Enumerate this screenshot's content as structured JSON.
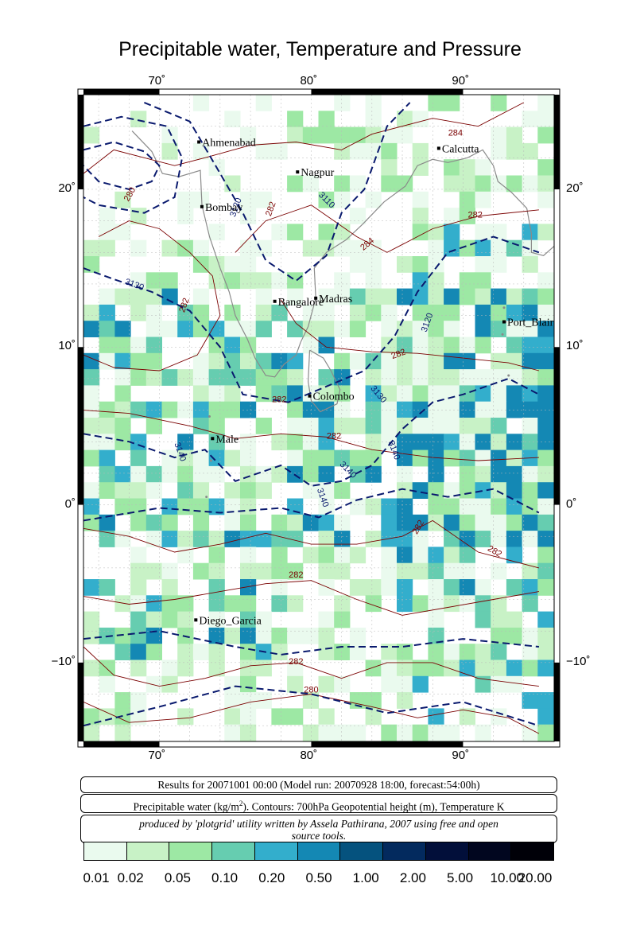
{
  "title": "Precipitable water, Temperature and Pressure",
  "map": {
    "lon_range": [
      65,
      96
    ],
    "lat_range": [
      -15,
      26
    ],
    "x_ticks": [
      {
        "value": 70,
        "label": "70˚"
      },
      {
        "value": 80,
        "label": "80˚"
      },
      {
        "value": 90,
        "label": "90˚"
      }
    ],
    "y_ticks": [
      {
        "value": 20,
        "label": "20˚"
      },
      {
        "value": 10,
        "label": "10˚"
      },
      {
        "value": 0,
        "label": "0˚"
      },
      {
        "value": -10,
        "label": "−10˚"
      }
    ],
    "cities": [
      {
        "name": "Ahmenabad",
        "lon": 72.6,
        "lat": 23.0
      },
      {
        "name": "Nagpur",
        "lon": 79.1,
        "lat": 21.1
      },
      {
        "name": "Calcutta",
        "lon": 88.4,
        "lat": 22.6
      },
      {
        "name": "Bombay",
        "lon": 72.8,
        "lat": 18.9
      },
      {
        "name": "Madras",
        "lon": 80.3,
        "lat": 13.1
      },
      {
        "name": "Bangalore",
        "lon": 77.6,
        "lat": 12.9
      },
      {
        "name": "Port_Blair",
        "lon": 92.7,
        "lat": 11.6
      },
      {
        "name": "Colombo",
        "lon": 79.9,
        "lat": 6.9
      },
      {
        "name": "Male",
        "lon": 73.5,
        "lat": 4.2
      },
      {
        "name": "Diego_Garcia",
        "lon": 72.4,
        "lat": -7.3
      }
    ],
    "contour_labels_blue": [
      {
        "text": "3110",
        "lon": 80.9,
        "lat": 19.2,
        "rot": 45
      },
      {
        "text": "3120",
        "lon": 75.2,
        "lat": 18.8,
        "rot": -70
      },
      {
        "text": "3130",
        "lon": 68.3,
        "lat": 13.8,
        "rot": 20
      },
      {
        "text": "3120",
        "lon": 87.8,
        "lat": 11.5,
        "rot": -70
      },
      {
        "text": "3130",
        "lon": 84.3,
        "lat": 6.9,
        "rot": 50
      },
      {
        "text": "3140",
        "lon": 71.2,
        "lat": 3.3,
        "rot": 70
      },
      {
        "text": "3140",
        "lon": 85.3,
        "lat": 3.4,
        "rot": 70
      },
      {
        "text": "3140",
        "lon": 82.3,
        "lat": 2.1,
        "rot": 45
      },
      {
        "text": "3140",
        "lon": 80.6,
        "lat": 0.4,
        "rot": 70
      }
    ],
    "contour_labels_red": [
      {
        "text": "280",
        "lon": 68.2,
        "lat": 19.6,
        "rot": -60
      },
      {
        "text": "282",
        "lon": 77.5,
        "lat": 18.7,
        "rot": -70
      },
      {
        "text": "284",
        "lon": 83.8,
        "lat": 16.4,
        "rot": -40
      },
      {
        "text": "284",
        "lon": 89.5,
        "lat": 23.4,
        "rot": 0
      },
      {
        "text": "282",
        "lon": 90.8,
        "lat": 18.2,
        "rot": 0
      },
      {
        "text": "282",
        "lon": 71.8,
        "lat": 12.6,
        "rot": -70
      },
      {
        "text": "282",
        "lon": 85.8,
        "lat": 9.4,
        "rot": -20
      },
      {
        "text": "282",
        "lon": 77.9,
        "lat": 6.5,
        "rot": 0
      },
      {
        "text": "282",
        "lon": 81.5,
        "lat": 4.2,
        "rot": 0
      },
      {
        "text": "282",
        "lon": 87.2,
        "lat": -1.5,
        "rot": -60
      },
      {
        "text": "282",
        "lon": 92.0,
        "lat": -3.1,
        "rot": 30
      },
      {
        "text": "282",
        "lon": 79.0,
        "lat": -4.6,
        "rot": 0
      },
      {
        "text": "282",
        "lon": 79.0,
        "lat": -10.1,
        "rot": 0
      },
      {
        "text": "280",
        "lon": 80.0,
        "lat": -11.9,
        "rot": 0
      }
    ]
  },
  "info": {
    "run_line": "Results for 20071001 00:00 (Model run: 20070928 18:00, forecast:54:00h)",
    "variables_line_a": "Precipitable water (kg/m",
    "variables_sup": "2",
    "variables_line_b": ").  Contours: 700hPa Geopotential height (m), Temperature K",
    "credit_line_1": "produced by 'plotgrid' utility written by Assela Pathirana, 2007 using free and open",
    "credit_line_2": "source tools."
  },
  "legend": {
    "labels": [
      "0.01",
      "0.02",
      "0.05",
      "0.10",
      "0.20",
      "0.50",
      "1.00",
      "2.00",
      "5.00",
      "10.00",
      "20.00"
    ],
    "colors": [
      "#eafaee",
      "#c8f2c6",
      "#9de8a4",
      "#66cdb0",
      "#33aecc",
      "#1488b4",
      "#05527e",
      "#032a5e",
      "#020f3a",
      "#01061f",
      "#000008"
    ]
  }
}
